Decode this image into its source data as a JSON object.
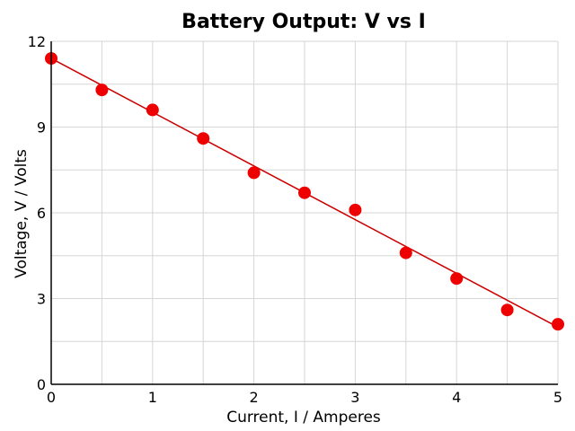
{
  "chart_data": {
    "type": "scatter",
    "title": "Battery Output: V vs I",
    "xlabel": "Current, I / Amperes",
    "ylabel": "Voltage, V / Volts",
    "xlim": [
      0,
      5
    ],
    "ylim": [
      0,
      12
    ],
    "xticks": [
      0,
      1,
      2,
      3,
      4,
      5
    ],
    "yticks": [
      0,
      3,
      6,
      9,
      12
    ],
    "grid": true,
    "colors": {
      "marker": "#ee0000",
      "line": "#cc0000"
    },
    "series": [
      {
        "x": [
          0,
          0.5,
          1,
          1.5,
          2,
          2.5,
          3,
          3.5,
          4,
          4.5,
          5
        ],
        "y": [
          11.4,
          10.3,
          9.6,
          8.6,
          7.4,
          6.7,
          6.1,
          4.6,
          3.7,
          2.6,
          2.1
        ]
      }
    ],
    "fit_line": {
      "x": [
        0,
        5
      ],
      "y": [
        11.4,
        2.0
      ]
    }
  }
}
